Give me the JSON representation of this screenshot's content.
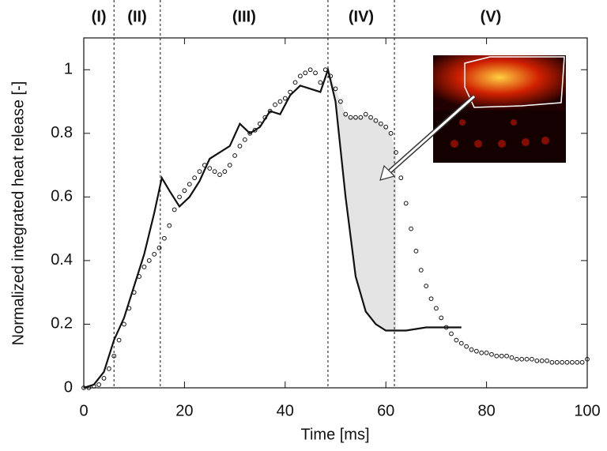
{
  "chart_data": {
    "type": "line-scatter",
    "xlabel": "Time [ms]",
    "ylabel": "Normalized integrated heat release [-]",
    "xlim": [
      0,
      100
    ],
    "ylim": [
      0,
      1.1
    ],
    "xticks": [
      0,
      20,
      40,
      60,
      80,
      100
    ],
    "yticks": [
      0,
      0.2,
      0.4,
      0.6,
      0.8,
      1
    ],
    "phase_lines": [
      6,
      15.2,
      48.5,
      61.7
    ],
    "phase_labels": [
      "(I)",
      "(II)",
      "(III)",
      "(IV)",
      "(V)"
    ],
    "series": [
      {
        "style": "line",
        "color": "#111111",
        "x": [
          0,
          2,
          4,
          6,
          8,
          10,
          12,
          14,
          15.5,
          17,
          19,
          21,
          23,
          25,
          27,
          29,
          31,
          33,
          35,
          37,
          39,
          41,
          43,
          45,
          47,
          48.5,
          50,
          52,
          54,
          56,
          58,
          60,
          62,
          64,
          66,
          68,
          70,
          72,
          75
        ],
        "values": [
          0,
          0.01,
          0.05,
          0.15,
          0.22,
          0.32,
          0.42,
          0.55,
          0.66,
          0.62,
          0.57,
          0.6,
          0.65,
          0.72,
          0.74,
          0.76,
          0.83,
          0.8,
          0.82,
          0.87,
          0.86,
          0.92,
          0.95,
          0.94,
          0.93,
          1.0,
          0.9,
          0.6,
          0.35,
          0.24,
          0.2,
          0.18,
          0.18,
          0.18,
          0.185,
          0.19,
          0.19,
          0.19,
          0.19
        ]
      },
      {
        "style": "circles",
        "color": "#111111",
        "x": [
          0,
          1,
          2,
          3,
          4,
          5,
          6,
          7,
          8,
          9,
          10,
          11,
          12,
          13,
          14,
          15,
          16,
          17,
          18,
          19,
          20,
          21,
          22,
          23,
          24,
          25,
          26,
          27,
          28,
          29,
          30,
          31,
          32,
          33,
          34,
          35,
          36,
          37,
          38,
          39,
          40,
          41,
          42,
          43,
          44,
          45,
          46,
          47,
          48,
          49,
          50,
          51,
          52,
          53,
          54,
          55,
          56,
          57,
          58,
          59,
          60,
          61,
          62,
          63,
          64,
          65,
          66,
          67,
          68,
          69,
          70,
          71,
          72,
          73,
          74,
          75,
          76,
          77,
          78,
          79,
          80,
          81,
          82,
          83,
          84,
          85,
          86,
          87,
          88,
          89,
          90,
          91,
          92,
          93,
          94,
          95,
          96,
          97,
          98,
          99,
          100
        ],
        "values": [
          0,
          0,
          0.005,
          0.01,
          0.03,
          0.06,
          0.1,
          0.15,
          0.2,
          0.25,
          0.3,
          0.35,
          0.38,
          0.4,
          0.42,
          0.44,
          0.47,
          0.51,
          0.56,
          0.6,
          0.62,
          0.64,
          0.66,
          0.68,
          0.7,
          0.69,
          0.68,
          0.67,
          0.68,
          0.7,
          0.73,
          0.76,
          0.78,
          0.8,
          0.81,
          0.83,
          0.85,
          0.87,
          0.89,
          0.9,
          0.91,
          0.93,
          0.96,
          0.98,
          0.99,
          1.0,
          0.99,
          0.96,
          1.0,
          0.98,
          0.94,
          0.9,
          0.86,
          0.85,
          0.85,
          0.85,
          0.86,
          0.85,
          0.84,
          0.83,
          0.82,
          0.8,
          0.74,
          0.66,
          0.58,
          0.5,
          0.43,
          0.37,
          0.32,
          0.28,
          0.25,
          0.22,
          0.19,
          0.17,
          0.15,
          0.14,
          0.13,
          0.12,
          0.115,
          0.11,
          0.11,
          0.105,
          0.1,
          0.1,
          0.1,
          0.095,
          0.09,
          0.09,
          0.09,
          0.09,
          0.085,
          0.085,
          0.085,
          0.08,
          0.08,
          0.08,
          0.08,
          0.08,
          0.08,
          0.08,
          0.09
        ]
      }
    ]
  }
}
